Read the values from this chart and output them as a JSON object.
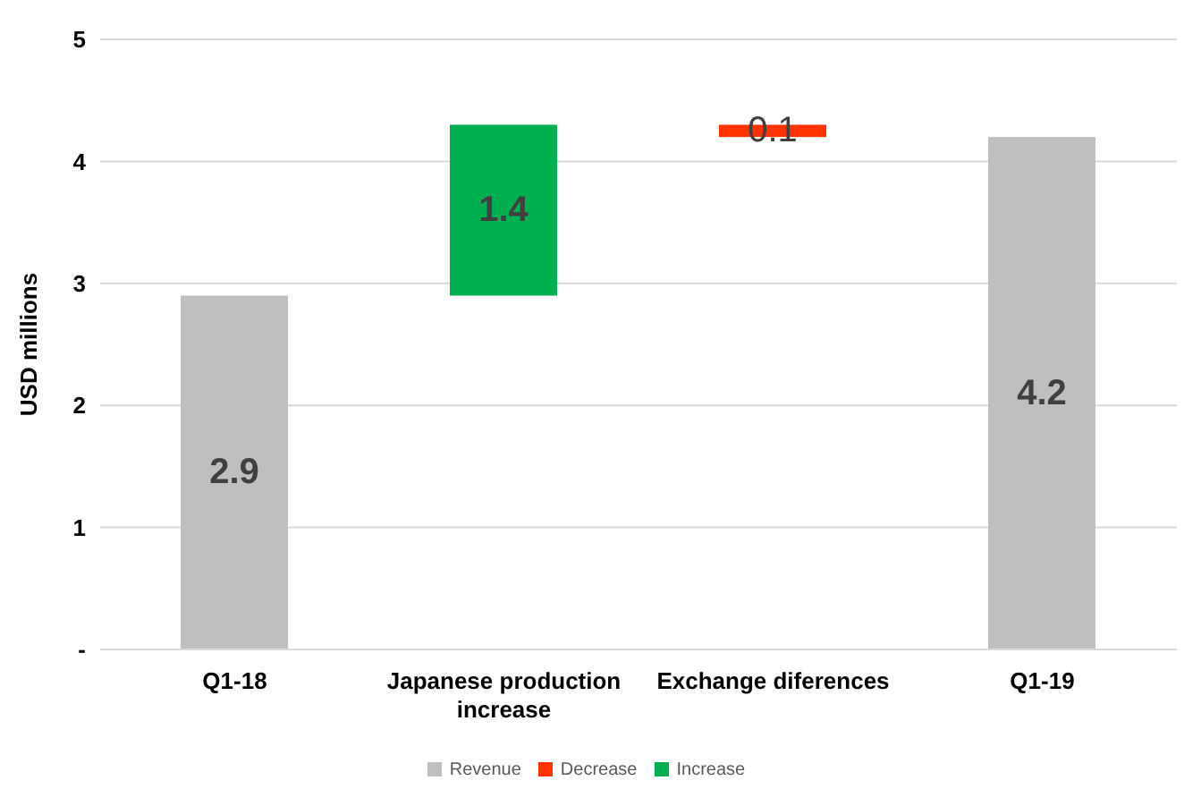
{
  "chart_data": {
    "type": "bar",
    "ylabel": "USD millions",
    "categories": [
      "Q1-18",
      "Japanese production increase",
      "Exchange diferences",
      "Q1-19"
    ],
    "series": [
      {
        "name": "Revenue",
        "color": "#bfbfbf",
        "values": [
          2.9,
          null,
          null,
          4.2
        ],
        "base": [
          0,
          null,
          null,
          0
        ]
      },
      {
        "name": "Decrease",
        "color": "#ff3300",
        "values": [
          null,
          null,
          0.1,
          null
        ],
        "base": [
          null,
          null,
          4.2,
          null
        ]
      },
      {
        "name": "Increase",
        "color": "#00b050",
        "values": [
          null,
          1.4,
          null,
          null
        ],
        "base": [
          null,
          2.9,
          null,
          null
        ]
      }
    ],
    "data_labels": true,
    "ylim": [
      0,
      5
    ],
    "yticks": [
      {
        "value": 0,
        "label": "-"
      },
      1,
      2,
      3,
      4,
      5
    ],
    "grid": "y",
    "legend": "bottom"
  }
}
